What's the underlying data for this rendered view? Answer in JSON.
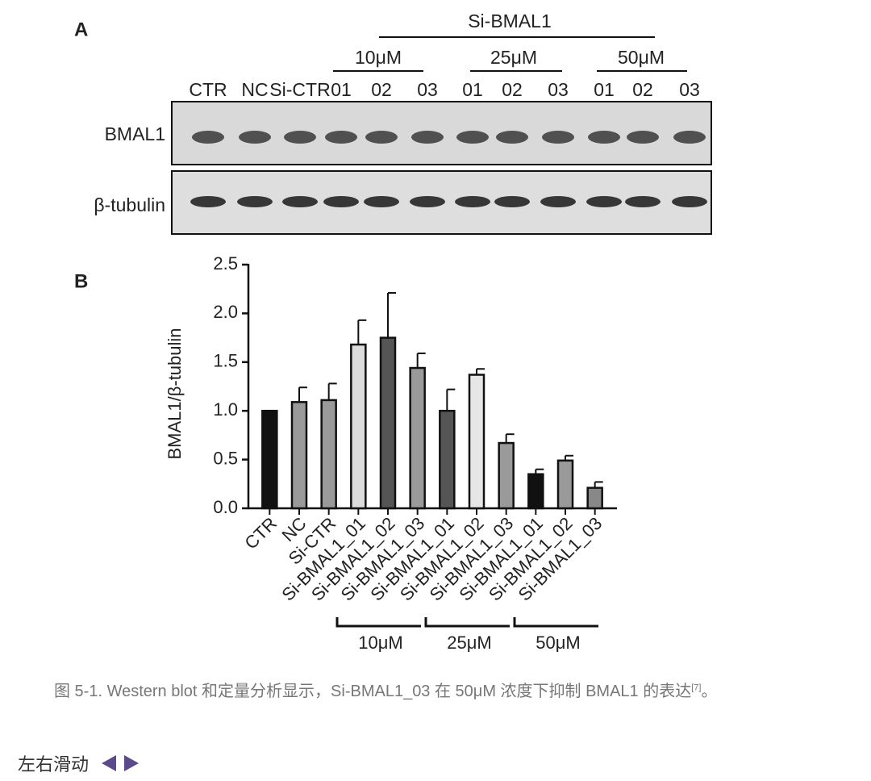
{
  "blot": {
    "label": "A",
    "treatment": "Si-BMAL1",
    "concentrations": [
      "10μM",
      "25μM",
      "50μM"
    ],
    "lanes": [
      "CTR",
      "NC",
      "Si-CTR",
      "01",
      "02",
      "03",
      "01",
      "02",
      "03",
      "01",
      "02",
      "03"
    ],
    "rows": [
      "BMAL1",
      "β-tubulin"
    ]
  },
  "chart_data": {
    "type": "bar",
    "panel_label": "B",
    "y_label": "BMAL1/β-tubulin",
    "categories": [
      "CTR",
      "NC",
      "Si-CTR",
      "Si-BMAL1_01",
      "Si-BMAL1_02",
      "Si-BMAL1_03",
      "Si-BMAL1_01",
      "Si-BMAL1_02",
      "Si-BMAL1_03",
      "Si-BMAL1_01",
      "Si-BMAL1_02",
      "Si-BMAL1_03"
    ],
    "values": [
      1.0,
      1.09,
      1.11,
      1.68,
      1.75,
      1.44,
      1.0,
      1.37,
      0.67,
      0.35,
      0.49,
      0.21
    ],
    "errors": [
      0,
      0.15,
      0.17,
      0.25,
      0.46,
      0.15,
      0.22,
      0.06,
      0.09,
      0.05,
      0.05,
      0.06
    ],
    "colors": [
      "#111111",
      "#9a9a9a",
      "#9a9a9a",
      "#dcdcdc",
      "#555555",
      "#9a9a9a",
      "#555555",
      "#e6e6e6",
      "#9a9a9a",
      "#111111",
      "#9a9a9a",
      "#888888"
    ],
    "groups": [
      "10μM",
      "25μM",
      "50μM"
    ],
    "ylim": [
      0,
      2.5
    ],
    "yticks": [
      {
        "value": 0,
        "label": "0.0"
      },
      0.5,
      {
        "value": 1,
        "label": "1.0"
      },
      1.5,
      {
        "value": 2,
        "label": "2.0"
      },
      2.5
    ]
  },
  "caption": {
    "text": "图 5-1. Western blot 和定量分析显示，Si-BMAL1_03 在 50μM 浓度下抑制 BMAL1 的表达",
    "ref": "[7]",
    "end": "。"
  },
  "nav": {
    "label": "左右滑动"
  }
}
